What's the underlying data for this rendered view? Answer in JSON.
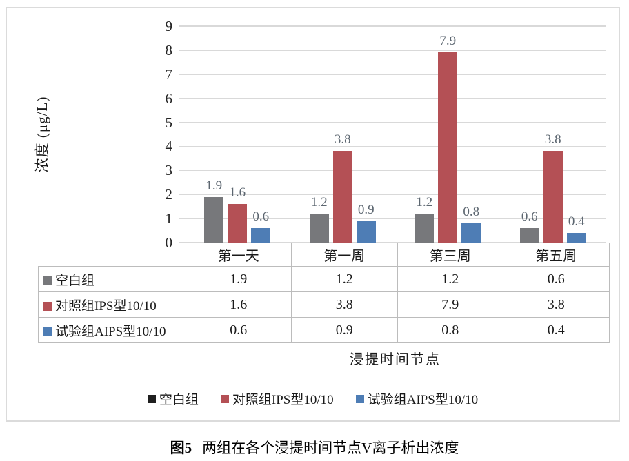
{
  "colors": {
    "frame": "#dbdbdb",
    "grid": "#d9d9d9",
    "table_border": "#bcbcbc",
    "data_label": "#5c6670",
    "gray_series": "#77787b",
    "red_series": "#b45055",
    "blue_series": "#4e7db5",
    "legend_blank_swatch": "#1f1f1f"
  },
  "chart_data": {
    "type": "bar",
    "categories": [
      "第一天",
      "第一周",
      "第三周",
      "第五周"
    ],
    "series": [
      {
        "name": "空白组",
        "values": [
          1.9,
          1.2,
          1.2,
          0.6
        ],
        "color": "#77787b",
        "legend_color": "#1f1f1f"
      },
      {
        "name": "对照组IPS型10/10",
        "values": [
          1.6,
          3.8,
          7.9,
          3.8
        ],
        "color": "#b45055"
      },
      {
        "name": "试验组AIPS型10/10",
        "values": [
          0.6,
          0.9,
          0.8,
          0.4
        ],
        "color": "#4e7db5"
      }
    ],
    "title": "",
    "ylabel": "浓度 (μg/L)",
    "xlabel": "浸提时间节点",
    "ylim": [
      0,
      9
    ],
    "ytick_step": 1,
    "grid": true,
    "data_labels": true,
    "show_data_table": true,
    "legend_position": "bottom"
  },
  "caption": {
    "prefix": "图5",
    "text": "两组在各个浸提时间节点V离子析出浓度"
  }
}
